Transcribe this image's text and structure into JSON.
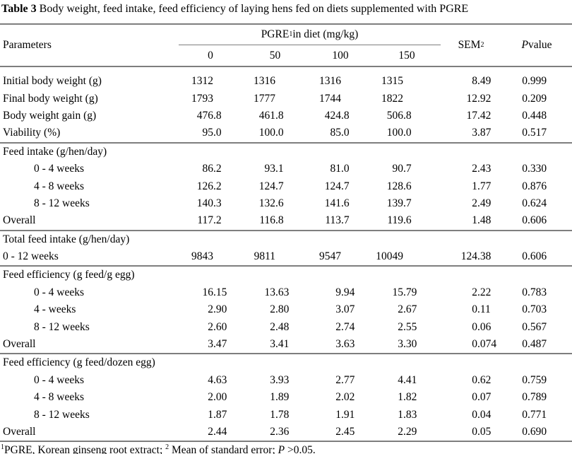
{
  "page": {
    "background": "#ffffff",
    "text_color": "#000000",
    "rule_color": "#7e7e7e"
  },
  "title": {
    "label": "Table 3",
    "text": " Body weight, feed intake, feed efficiency of laying hens fed on diets supplemented with PGRE"
  },
  "table": {
    "header": {
      "parameters": "Parameters",
      "group_label": {
        "base": "PGRE",
        "sup": "1",
        "rest": " in diet (mg/kg)"
      },
      "doses": [
        "0",
        "50",
        "100",
        "150"
      ],
      "sem": {
        "base": "SEM",
        "sup": "2"
      },
      "pvalue": {
        "italic": "P",
        "rest": " value"
      }
    },
    "rows": [
      {
        "type": "data",
        "indent": 0,
        "label": "Initial body weight (g)",
        "values": [
          "1312",
          "1316",
          "1316",
          "1315",
          "8.49",
          "0.999"
        ]
      },
      {
        "type": "data",
        "indent": 0,
        "label": "Final body weight (g)",
        "values": [
          "1793",
          "1777",
          "1744",
          "1822",
          "12.92",
          "0.209"
        ]
      },
      {
        "type": "data",
        "indent": 0,
        "label": "Body weight gain (g)",
        "values": [
          "476.8",
          "461.8",
          "424.8",
          "506.8",
          "17.42",
          "0.448"
        ]
      },
      {
        "type": "data",
        "indent": 0,
        "label": "Viability (%)",
        "values": [
          "95.0",
          "100.0",
          "85.0",
          "100.0",
          "3.87",
          "0.517"
        ]
      },
      {
        "type": "section",
        "rule_above": true,
        "label": "Feed intake (g/hen/day)"
      },
      {
        "type": "data",
        "indent": 1,
        "label": "0 - 4 weeks",
        "values": [
          "86.2",
          "93.1",
          "81.0",
          "90.7",
          "2.43",
          "0.330"
        ]
      },
      {
        "type": "data",
        "indent": 1,
        "label": "4 - 8 weeks",
        "values": [
          "126.2",
          "124.7",
          "124.7",
          "128.6",
          "1.77",
          "0.876"
        ]
      },
      {
        "type": "data",
        "indent": 1,
        "label": "8 - 12 weeks",
        "values": [
          "140.3",
          "132.6",
          "141.6",
          "139.7",
          "2.49",
          "0.624"
        ]
      },
      {
        "type": "data",
        "indent": 0,
        "label": "Overall",
        "values": [
          "117.2",
          "116.8",
          "113.7",
          "119.6",
          "1.48",
          "0.606"
        ]
      },
      {
        "type": "section",
        "rule_above": true,
        "label": "Total feed intake (g/hen/day)"
      },
      {
        "type": "data",
        "indent": 0,
        "label": "0 - 12 weeks",
        "values": [
          "9843",
          "9811",
          "9547",
          "10049",
          "124.38",
          "0.606"
        ]
      },
      {
        "type": "section",
        "rule_above": true,
        "label": "Feed efficiency (g feed/g egg)"
      },
      {
        "type": "data",
        "indent": 1,
        "label": "0 - 4 weeks",
        "values": [
          "16.15",
          "13.63",
          "9.94",
          "15.79",
          "2.22",
          "0.783"
        ]
      },
      {
        "type": "data",
        "indent": 1,
        "label": "4 - weeks",
        "values": [
          "2.90",
          "2.80",
          "3.07",
          "2.67",
          "0.11",
          "0.703"
        ]
      },
      {
        "type": "data",
        "indent": 1,
        "label": "8 - 12 weeks",
        "values": [
          "2.60",
          "2.48",
          "2.74",
          "2.55",
          "0.06",
          "0.567"
        ]
      },
      {
        "type": "data",
        "indent": 0,
        "label": "Overall",
        "values": [
          "3.47",
          "3.41",
          "3.63",
          "3.30",
          "0.074",
          "0.487"
        ]
      },
      {
        "type": "section",
        "rule_above": true,
        "label": "Feed efficiency (g feed/dozen egg)"
      },
      {
        "type": "data",
        "indent": 1,
        "label": "0 - 4 weeks",
        "values": [
          "4.63",
          "3.93",
          "2.77",
          "4.41",
          "0.62",
          "0.759"
        ]
      },
      {
        "type": "data",
        "indent": 1,
        "label": "4 - 8 weeks",
        "values": [
          "2.00",
          "1.89",
          "2.02",
          "1.82",
          "0.07",
          "0.789"
        ]
      },
      {
        "type": "data",
        "indent": 1,
        "label": "8 - 12 weeks",
        "values": [
          "1.87",
          "1.78",
          "1.91",
          "1.83",
          "0.04",
          "0.771"
        ]
      },
      {
        "type": "data",
        "indent": 0,
        "label": "Overall",
        "values": [
          "2.44",
          "2.36",
          "2.45",
          "2.29",
          "0.05",
          "0.690"
        ]
      }
    ]
  },
  "footnote": {
    "sup1": "1",
    "part1": "PGRE, Korean ginseng root extract; ",
    "sup2": "2",
    "part2": " Mean of standard error; ",
    "p": "P",
    "part3": " >0.05."
  }
}
